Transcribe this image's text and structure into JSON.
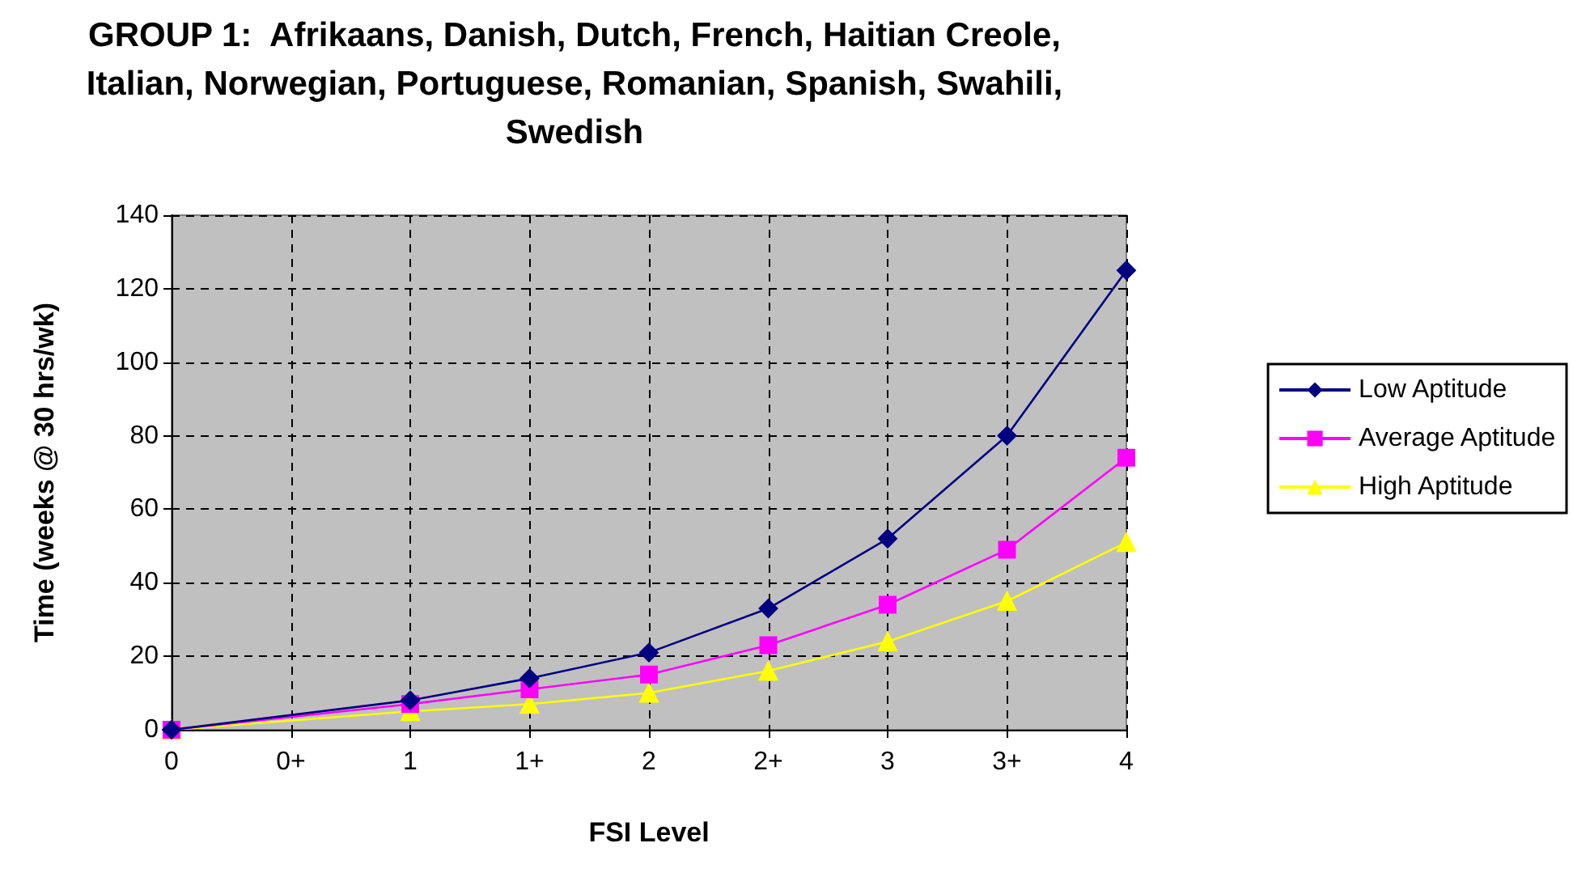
{
  "chart_data": {
    "type": "line",
    "title": "GROUP 1:  Afrikaans, Danish, Dutch, French, Haitian Creole,\nItalian, Norwegian, Portuguese, Romanian, Spanish, Swahili,\nSwedish",
    "xlabel": "FSI Level",
    "ylabel": "Time (weeks @ 30 hrs/wk)",
    "categories": [
      "0",
      "0+",
      "1",
      "1+",
      "2",
      "2+",
      "3",
      "3+",
      "4"
    ],
    "series": [
      {
        "name": "Low Aptitude",
        "color": "#000080",
        "marker": "diamond",
        "values": [
          0,
          null,
          8,
          14,
          21,
          33,
          52,
          80,
          125
        ]
      },
      {
        "name": "Average Aptitude",
        "color": "#ff00ff",
        "marker": "square",
        "values": [
          0,
          null,
          7,
          11,
          15,
          23,
          34,
          49,
          74
        ]
      },
      {
        "name": "High Aptitude",
        "color": "#ffff00",
        "marker": "triangle",
        "values": [
          0,
          null,
          5,
          7,
          10,
          16,
          24,
          35,
          51
        ]
      }
    ],
    "ylim": [
      0,
      140
    ],
    "yticks": [
      0,
      20,
      40,
      60,
      80,
      100,
      120,
      140
    ],
    "grid": true,
    "legend": "right"
  }
}
